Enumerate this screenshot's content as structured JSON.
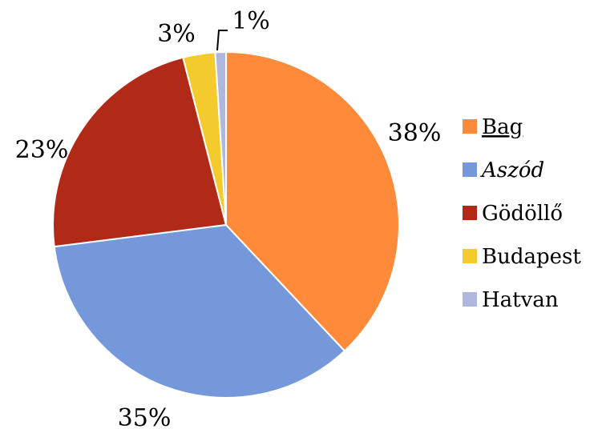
{
  "chart_data": {
    "type": "pie",
    "title": "",
    "slices": [
      {
        "label": "Bag",
        "value": 38,
        "data_label": "38%",
        "color": "#FF8A3A",
        "label_style": "underline"
      },
      {
        "label": "Aszód",
        "value": 35,
        "data_label": "35%",
        "color": "#7598DA",
        "label_style": "italic"
      },
      {
        "label": "Gödöllő",
        "value": 23,
        "data_label": "23%",
        "color": "#B02A17",
        "label_style": "normal"
      },
      {
        "label": "Budapest",
        "value": 3,
        "data_label": "3%",
        "color": "#F4CB2C",
        "label_style": "normal"
      },
      {
        "label": "Hatvan",
        "value": 1,
        "data_label": "1%",
        "color": "#AFB8DC",
        "label_style": "normal"
      }
    ],
    "legend_position": "right",
    "start_angle": "12 o'clock",
    "direction": "clockwise"
  }
}
